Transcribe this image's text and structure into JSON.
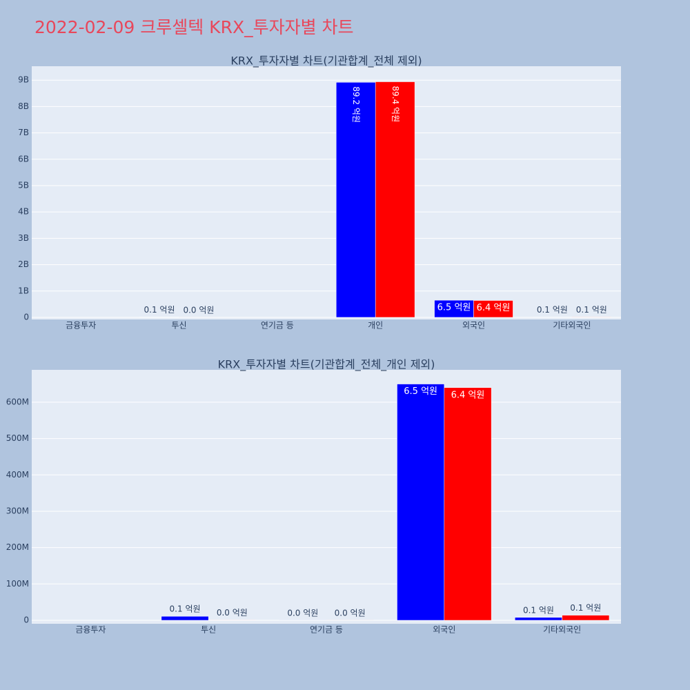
{
  "title": "2022-02-09 크루셀텍 KRX_투자자별 차트",
  "chart_data": [
    {
      "type": "bar",
      "title": "KRX_투자자별 차트(기관합계_전체 제외)",
      "categories": [
        "금융투자",
        "투신",
        "연기금 등",
        "개인",
        "외국인",
        "기타외국인"
      ],
      "series": [
        {
          "color": "#0000ff",
          "values": [
            null,
            10000000,
            null,
            8920000000,
            650000000,
            8000000
          ],
          "value_labels": [
            null,
            "0.1 억원",
            null,
            "89.2 억원",
            "6.5 억원",
            "0.1 억원"
          ]
        },
        {
          "color": "#ff0000",
          "values": [
            null,
            1000000,
            null,
            8940000000,
            640000000,
            14000000
          ],
          "value_labels": [
            null,
            "0.0 억원",
            null,
            "89.4 억원",
            "6.4 억원",
            "0.1 억원"
          ]
        }
      ],
      "ylim": [
        -80000000,
        9530000000
      ],
      "yticks": [
        0,
        {
          "value": 1000000000,
          "label": "1B"
        },
        {
          "value": 2000000000,
          "label": "2B"
        },
        {
          "value": 3000000000,
          "label": "3B"
        },
        {
          "value": 4000000000,
          "label": "4B"
        },
        {
          "value": 5000000000,
          "label": "5B"
        },
        {
          "value": 6000000000,
          "label": "6B"
        },
        {
          "value": 7000000000,
          "label": "7B"
        },
        {
          "value": 8000000000,
          "label": "8B"
        },
        {
          "value": 9000000000,
          "label": "9B"
        }
      ],
      "grid": true
    },
    {
      "type": "bar",
      "title": "KRX_투자자별 차트(기관합계_전체_개인 제외)",
      "categories": [
        "금융투자",
        "투신",
        "연기금 등",
        "외국인",
        "기타외국인"
      ],
      "series": [
        {
          "color": "#0000ff",
          "values": [
            null,
            11000000,
            300000,
            650000000,
            8000000
          ],
          "value_labels": [
            null,
            "0.1 억원",
            "0.0 억원",
            "6.5 억원",
            "0.1 억원"
          ]
        },
        {
          "color": "#ff0000",
          "values": [
            null,
            1000000,
            300000,
            640000000,
            14000000
          ],
          "value_labels": [
            null,
            "0.0 억원",
            "0.0 억원",
            "6.4 억원",
            "0.1 억원"
          ]
        }
      ],
      "ylim": [
        -9500000,
        689000000
      ],
      "yticks": [
        0,
        {
          "value": 100000000,
          "label": "100M"
        },
        {
          "value": 200000000,
          "label": "200M"
        },
        {
          "value": 300000000,
          "label": "300M"
        },
        {
          "value": 400000000,
          "label": "400M"
        },
        {
          "value": 500000000,
          "label": "500M"
        },
        {
          "value": 600000000,
          "label": "600M"
        }
      ],
      "grid": true
    }
  ]
}
